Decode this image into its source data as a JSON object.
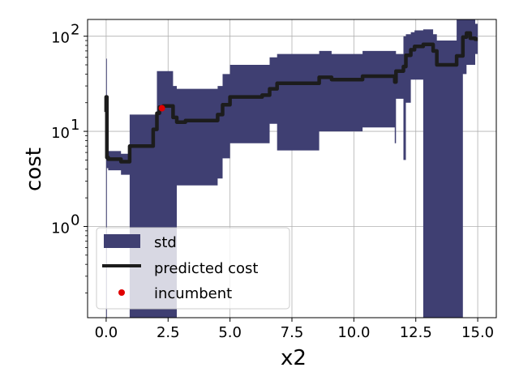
{
  "chart_data": {
    "type": "line",
    "title": "",
    "xlabel": "x2",
    "ylabel": "cost",
    "xlim": [
      -0.75,
      15.75
    ],
    "ylim": [
      0.11,
      150
    ],
    "yscale": "log",
    "grid": true,
    "legend_position": "lower-left",
    "x_ticks": [
      0.0,
      2.5,
      5.0,
      7.5,
      10.0,
      12.5,
      15.0
    ],
    "x_tick_labels": [
      "0.0",
      "2.5",
      "5.0",
      "7.5",
      "10.0",
      "12.5",
      "15.0"
    ],
    "y_ticks": [
      1,
      10,
      100
    ],
    "y_tick_labels": [
      {
        "base": "10",
        "exp": "0"
      },
      {
        "base": "10",
        "exp": "1"
      },
      {
        "base": "10",
        "exp": "2"
      }
    ],
    "colors": {
      "std": "#3f3f72",
      "predicted": "#1c1c1c",
      "incumbent": "#e00000",
      "grid": "#b0b0b0"
    },
    "legend": {
      "std": "std",
      "predicted": "predicted cost",
      "incumbent": "incumbent"
    },
    "series": [
      {
        "name": "predicted cost",
        "x": [
          0.0,
          0.0,
          0.03,
          0.03,
          0.08,
          0.08,
          0.6,
          0.6,
          0.95,
          0.95,
          1.9,
          1.9,
          2.05,
          2.05,
          2.15,
          2.15,
          2.3,
          2.3,
          2.7,
          2.7,
          2.85,
          2.85,
          3.2,
          3.2,
          4.5,
          4.5,
          4.7,
          4.7,
          5.0,
          5.0,
          6.3,
          6.3,
          6.6,
          6.6,
          6.9,
          6.9,
          8.6,
          8.6,
          9.1,
          9.1,
          10.35,
          10.35,
          11.65,
          11.65,
          11.7,
          11.7,
          12.0,
          12.0,
          12.1,
          12.1,
          12.3,
          12.3,
          12.45,
          12.45,
          12.8,
          12.8,
          13.2,
          13.2,
          13.35,
          13.35,
          14.15,
          14.15,
          14.4,
          14.4,
          14.55,
          14.55,
          14.7,
          14.7,
          14.9,
          14.9,
          15.0
        ],
        "y": [
          16,
          23,
          23,
          5.3,
          5.3,
          5.1,
          5.1,
          4.8,
          4.8,
          7.0,
          7.0,
          10.5,
          10.5,
          15.5,
          15.5,
          18.0,
          18.0,
          18.5,
          18.5,
          14.0,
          14.0,
          12.5,
          12.5,
          13.0,
          13.0,
          15.0,
          15.0,
          19.0,
          19.0,
          23.0,
          23.0,
          24.0,
          24.0,
          28.0,
          28.0,
          32.0,
          32.0,
          37.0,
          37.0,
          35.0,
          35.0,
          38.0,
          38.0,
          33.0,
          33.0,
          43.0,
          43.0,
          48.0,
          48.0,
          63.0,
          63.0,
          72.0,
          72.0,
          78.0,
          78.0,
          82.0,
          82.0,
          70.0,
          70.0,
          50.0,
          50.0,
          62.0,
          62.0,
          98.0,
          98.0,
          108.0,
          108.0,
          95.0,
          95.0,
          93.0,
          93.0
        ]
      },
      {
        "name": "std",
        "x": [
          0.0,
          0.0,
          0.03,
          0.03,
          0.08,
          0.08,
          0.6,
          0.6,
          0.95,
          0.95,
          1.9,
          1.9,
          2.05,
          2.05,
          2.15,
          2.15,
          2.3,
          2.3,
          2.7,
          2.7,
          2.85,
          2.85,
          3.2,
          3.2,
          4.5,
          4.5,
          4.7,
          4.7,
          5.0,
          5.0,
          6.3,
          6.3,
          6.6,
          6.6,
          6.9,
          6.9,
          8.6,
          8.6,
          9.1,
          9.1,
          10.35,
          10.35,
          11.65,
          11.65,
          11.7,
          11.7,
          12.0,
          12.0,
          12.1,
          12.1,
          12.3,
          12.3,
          12.45,
          12.45,
          12.8,
          12.8,
          13.2,
          13.2,
          13.35,
          13.35,
          14.15,
          14.15,
          14.4,
          14.4,
          14.55,
          14.55,
          14.7,
          14.7,
          14.9,
          14.9,
          15.0
        ],
        "upper": [
          58,
          58,
          58,
          6.5,
          6.5,
          6.2,
          6.2,
          5.8,
          5.8,
          15.0,
          15.0,
          15.0,
          15.0,
          43.0,
          43.0,
          43.0,
          43.0,
          43.0,
          43.0,
          30.0,
          30.0,
          28.0,
          28.0,
          28.0,
          28.0,
          30.0,
          30.0,
          40.0,
          40.0,
          50.0,
          50.0,
          50.0,
          50.0,
          60.0,
          60.0,
          65.0,
          65.0,
          70.0,
          70.0,
          65.0,
          65.0,
          70.0,
          70.0,
          70.0,
          70.0,
          65.0,
          65.0,
          100.0,
          100.0,
          105.0,
          105.0,
          110.0,
          110.0,
          115.0,
          115.0,
          118.0,
          118.0,
          105.0,
          105.0,
          90.0,
          90.0,
          150.0,
          150.0,
          150.0,
          150.0,
          150.0,
          150.0,
          150.0,
          150.0,
          135.0,
          135.0
        ],
        "lower": [
          0.11,
          0.11,
          0.11,
          4.1,
          4.1,
          3.9,
          3.9,
          3.5,
          3.5,
          0.11,
          0.11,
          0.11,
          0.11,
          0.11,
          0.11,
          0.11,
          0.11,
          0.11,
          0.11,
          0.11,
          0.11,
          2.7,
          2.7,
          2.7,
          2.7,
          3.2,
          3.2,
          5.2,
          5.2,
          7.5,
          7.5,
          7.5,
          7.5,
          12.0,
          12.0,
          6.3,
          6.3,
          10.0,
          10.0,
          10.0,
          10.0,
          11.0,
          11.0,
          7.5,
          7.5,
          22.0,
          22.0,
          5.0,
          5.0,
          20.0,
          20.0,
          35.0,
          35.0,
          35.0,
          35.0,
          0.11,
          0.11,
          0.11,
          0.11,
          0.11,
          0.11,
          0.11,
          0.11,
          40.0,
          40.0,
          50.0,
          50.0,
          50.0,
          50.0,
          65.0,
          65.0
        ]
      },
      {
        "name": "incumbent",
        "type": "scatter",
        "x": [
          2.25
        ],
        "y": [
          17.5
        ]
      }
    ]
  }
}
